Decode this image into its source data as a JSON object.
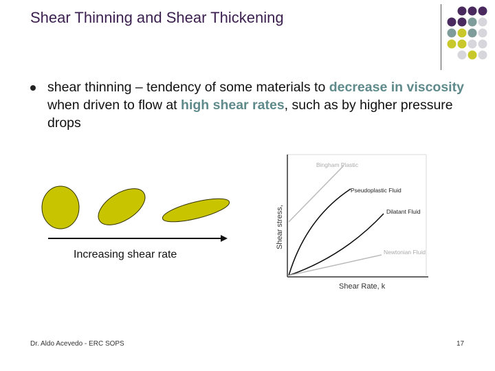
{
  "slide": {
    "title": "Shear Thinning and Shear Thickening",
    "bullet": {
      "part1": "shear thinning – tendency of some materials to ",
      "highlight1": "decrease in viscosity",
      "part2": " when driven to flow at ",
      "highlight2": "high shear rates",
      "part3": ", such as by higher pressure drops"
    },
    "shear_rate_label": "Increasing shear rate",
    "footer_author": "Dr. Aldo Acevedo - ERC SOPS",
    "page_number": "17"
  },
  "colors": {
    "title": "#3b1f4f",
    "highlight": "#5f8a8b",
    "ellipse_fill": "#c8c400",
    "dot_purple": "#4a2a5e",
    "dot_teal": "#7f9c9a",
    "dot_yellow": "#c8c82a",
    "dot_gray": "#d6d6dc"
  },
  "chart": {
    "ylabel": "Shear stress, ",
    "xlabel": "Shear Rate, k",
    "curves": {
      "bingham": "Bingham Plastic",
      "pseudoplastic": "Pseudoplastic Fluid",
      "dilatant": "Dilatant Fluid",
      "newtonian": "Newtonian Fluid"
    }
  }
}
